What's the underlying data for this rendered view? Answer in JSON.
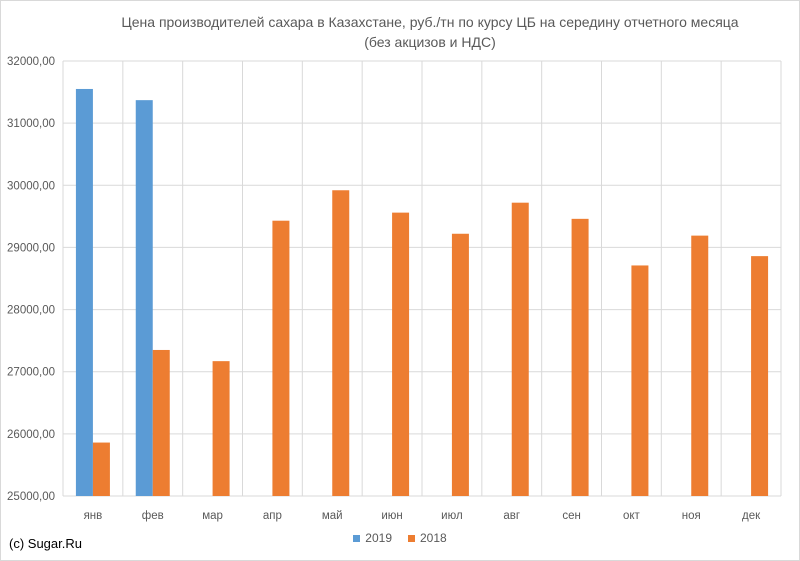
{
  "title_line1": "Цена производителей  сахара в Казахстане, руб./тн  по курсу ЦБ на середину отчетного месяца",
  "title_line2": "(без акцизов и НДС)",
  "credit": "(c) Sugar.Ru",
  "colors": {
    "s2019": "#5b9bd5",
    "s2018": "#ed7d31",
    "grid": "#d9d9d9",
    "text": "#595959"
  },
  "chart_data": {
    "type": "bar",
    "title": "Цена производителей  сахара в Казахстане, руб./тн  по курсу ЦБ на середину отчетного месяца (без акцизов и НДС)",
    "categories": [
      "янв",
      "фев",
      "мар",
      "апр",
      "май",
      "июн",
      "июл",
      "авг",
      "сен",
      "окт",
      "ноя",
      "дек"
    ],
    "series": [
      {
        "name": "2019",
        "values": [
          31550,
          31370,
          null,
          null,
          null,
          null,
          null,
          null,
          null,
          null,
          null,
          null
        ]
      },
      {
        "name": "2018",
        "values": [
          25860,
          27350,
          27170,
          29430,
          29920,
          29560,
          29220,
          29720,
          29460,
          28710,
          29190,
          28860
        ]
      }
    ],
    "ylim": [
      25000,
      32000
    ],
    "yticks": [
      "25000,00",
      "26000,00",
      "27000,00",
      "28000,00",
      "29000,00",
      "30000,00",
      "31000,00",
      "32000,00"
    ],
    "grid": true,
    "legend_position": "bottom",
    "xlabel": "",
    "ylabel": ""
  }
}
